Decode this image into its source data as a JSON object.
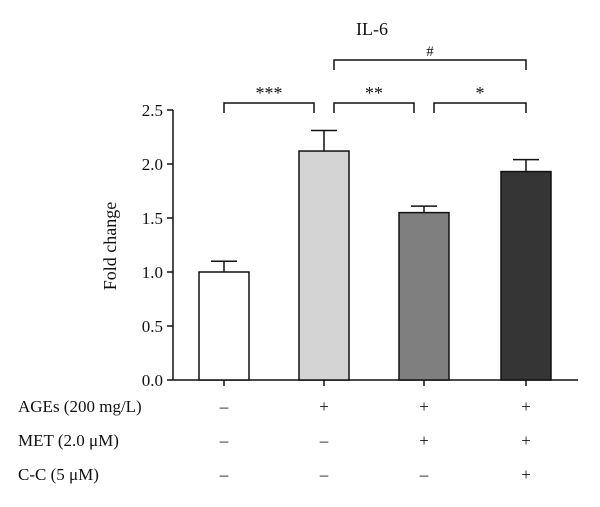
{
  "chart_data": {
    "type": "bar",
    "title": "IL-6",
    "ylabel": "Fold change",
    "ylim": [
      0,
      2.5
    ],
    "yticks": [
      "0.0",
      "0.5",
      "1.0",
      "1.5",
      "2.0",
      "2.5"
    ],
    "bars": [
      {
        "value": 1.0,
        "error": 0.1,
        "fill": "#ffffff"
      },
      {
        "value": 2.12,
        "error": 0.19,
        "fill": "#d4d4d4"
      },
      {
        "value": 1.55,
        "error": 0.06,
        "fill": "#7f7f7f"
      },
      {
        "value": 1.93,
        "error": 0.11,
        "fill": "#353535"
      }
    ],
    "significance": [
      {
        "from": 0,
        "to": 1,
        "label": "***"
      },
      {
        "from": 1,
        "to": 2,
        "label": "**"
      },
      {
        "from": 2,
        "to": 3,
        "label": "*"
      },
      {
        "from": 1,
        "to": 3,
        "label": "#"
      }
    ],
    "conditions": [
      {
        "label": "AGEs (200 mg/L)",
        "values": [
          "–",
          "+",
          "+",
          "+"
        ]
      },
      {
        "label": "MET (2.0 μM)",
        "values": [
          "–",
          "–",
          "+",
          "+"
        ]
      },
      {
        "label": "C-C (5 μM)",
        "values": [
          "–",
          "–",
          "–",
          "+"
        ]
      }
    ]
  }
}
